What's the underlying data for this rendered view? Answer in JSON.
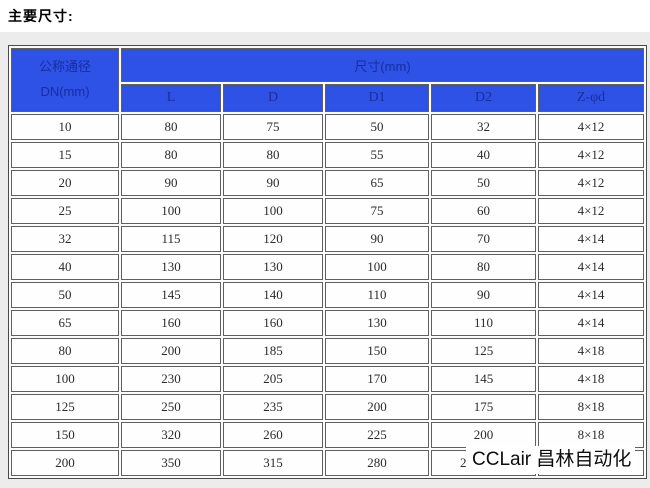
{
  "page": {
    "title": "主要尺寸:"
  },
  "colors": {
    "header_bg": "#2e52e6",
    "header_text": "#182d9e",
    "cell_border": "#5f5f5f",
    "page_lower_bg": "#ececec"
  },
  "table": {
    "col1_header_line1": "公称通径",
    "col1_header_line2": "DN(mm)",
    "group_header": "尺寸(mm)",
    "columns": [
      "L",
      "D",
      "D1",
      "D2",
      "Z-φd"
    ],
    "rows": [
      [
        "10",
        "80",
        "75",
        "50",
        "32",
        "4×12"
      ],
      [
        "15",
        "80",
        "80",
        "55",
        "40",
        "4×12"
      ],
      [
        "20",
        "90",
        "90",
        "65",
        "50",
        "4×12"
      ],
      [
        "25",
        "100",
        "100",
        "75",
        "60",
        "4×12"
      ],
      [
        "32",
        "115",
        "120",
        "90",
        "70",
        "4×14"
      ],
      [
        "40",
        "130",
        "130",
        "100",
        "80",
        "4×14"
      ],
      [
        "50",
        "145",
        "140",
        "110",
        "90",
        "4×14"
      ],
      [
        "65",
        "160",
        "160",
        "130",
        "110",
        "4×14"
      ],
      [
        "80",
        "200",
        "185",
        "150",
        "125",
        "4×18"
      ],
      [
        "100",
        "230",
        "205",
        "170",
        "145",
        "4×18"
      ],
      [
        "125",
        "250",
        "235",
        "200",
        "175",
        "8×18"
      ],
      [
        "150",
        "320",
        "260",
        "225",
        "200",
        "8×18"
      ],
      [
        "200",
        "350",
        "315",
        "280",
        "25",
        ""
      ]
    ]
  },
  "watermark": {
    "text": "CCLair 昌林自动化"
  }
}
